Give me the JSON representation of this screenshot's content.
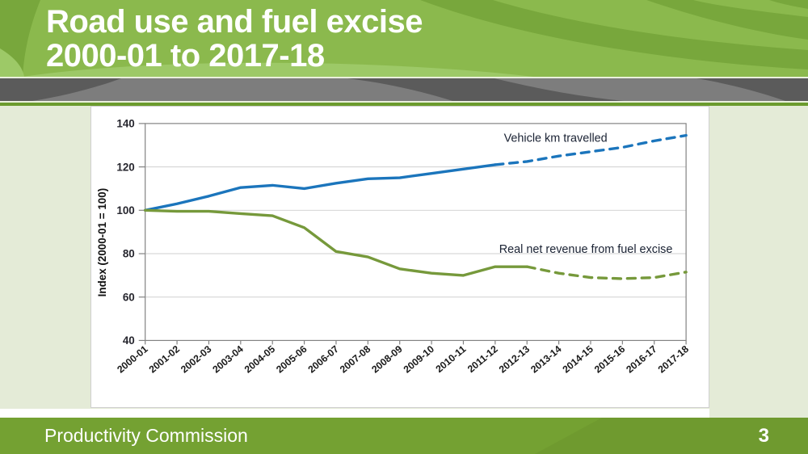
{
  "slide": {
    "title_line1": "Road use and fuel excise",
    "title_line2": "2000-01 to 2017-18",
    "footer_text": "Productivity Commission",
    "page_number": "3"
  },
  "chart_data": {
    "type": "line",
    "title": "",
    "xlabel": "",
    "ylabel": "Index (2000-01 = 100)",
    "ylim": [
      40,
      140
    ],
    "yticks": [
      40,
      60,
      80,
      100,
      120,
      140
    ],
    "grid": true,
    "legend_position": "annotations next to lines",
    "categories": [
      "2000-01",
      "2001-02",
      "2002-03",
      "2003-04",
      "2004-05",
      "2005-06",
      "2006-07",
      "2007-08",
      "2008-09",
      "2009-10",
      "2010-11",
      "2011-12",
      "2012-13",
      "2013-14",
      "2014-15",
      "2015-16",
      "2016-17",
      "2017-18"
    ],
    "series": [
      {
        "name": "Vehicle km travelled",
        "color": "#1b75bc",
        "dashed_from_index": 11,
        "label_anchor": {
          "x_index": 12.9,
          "value": 133.4
        },
        "values": [
          100,
          103,
          106.5,
          110.5,
          111.5,
          110,
          112.5,
          114.5,
          115,
          117,
          119,
          121,
          122.5,
          125,
          127,
          129,
          132,
          134.5
        ]
      },
      {
        "name": "Real net revenue from fuel excise",
        "color": "#76993b",
        "dashed_from_index": 12,
        "label_anchor": {
          "x_index": 13.85,
          "value": 82.2
        },
        "values": [
          100,
          99.5,
          99.5,
          98.5,
          97.5,
          92,
          81,
          78.5,
          73,
          71,
          70,
          74,
          74,
          71,
          69,
          68.5,
          69,
          71.5
        ]
      }
    ]
  },
  "colors": {
    "header_green": "#8bb94d",
    "header_ray_green": "#78a73c",
    "header_light_green": "#9dc967",
    "gray_band": "#7d7d7d",
    "gray_band_dark": "#5b5b5b",
    "separator_green": "#6b9b2d",
    "content_bg": "#e4ebd7",
    "footer_green": "#74a132",
    "footer_green_dark": "#6f9a2f",
    "grid_line": "#cfcfcf",
    "axis_line": "#828282",
    "tick_text": "#26262e",
    "annotation_text": "#1a2233"
  }
}
